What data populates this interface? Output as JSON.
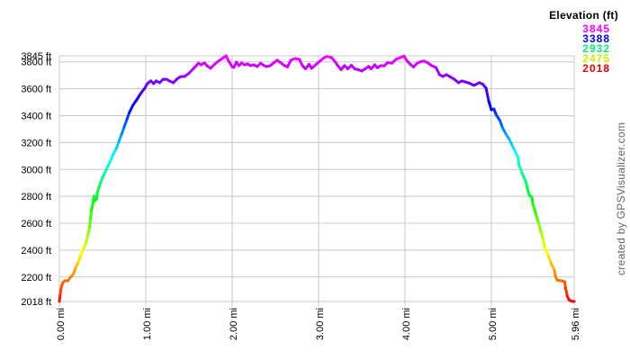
{
  "page": {
    "watermark": "created by GPSVisualizer.com"
  },
  "legend": {
    "title": "Elevation (ft)",
    "entries": [
      {
        "label": "3845",
        "color": "#ff00ff"
      },
      {
        "label": "3388",
        "color": "#0000ff"
      },
      {
        "label": "2932",
        "color": "#00f078"
      },
      {
        "label": "2475",
        "color": "#c8f000"
      },
      {
        "label": "2018",
        "color": "#f00000"
      }
    ]
  },
  "chart_data": {
    "type": "line",
    "title": "",
    "x_unit": "mi",
    "y_unit": "ft",
    "xlim": [
      0,
      5.96
    ],
    "ylim": [
      2018,
      3845
    ],
    "grid": true,
    "grid_color": "#c8c8c8",
    "legend_position": "top-right",
    "line_width": 3,
    "color_ramp": {
      "type": "rainbow-by-elevation",
      "min": 2018,
      "max": 3845,
      "hue_start_deg": 0,
      "hue_end_deg": 300
    },
    "x_ticks": [
      {
        "value": 0.0,
        "label": "0.00 mi"
      },
      {
        "value": 1.0,
        "label": "1.00 mi"
      },
      {
        "value": 2.0,
        "label": "2.00 mi"
      },
      {
        "value": 3.0,
        "label": "3.00 mi"
      },
      {
        "value": 4.0,
        "label": "4.00 mi"
      },
      {
        "value": 5.0,
        "label": "5.00 mi"
      },
      {
        "value": 5.96,
        "label": "5.96 mi"
      }
    ],
    "y_ticks": [
      {
        "value": 3845,
        "label": "3845 ft"
      },
      {
        "value": 3800,
        "label": "3800 ft"
      },
      {
        "value": 3600,
        "label": "3600 ft"
      },
      {
        "value": 3400,
        "label": "3400 ft"
      },
      {
        "value": 3200,
        "label": "3200 ft"
      },
      {
        "value": 3000,
        "label": "3000 ft"
      },
      {
        "value": 2800,
        "label": "2800 ft"
      },
      {
        "value": 2600,
        "label": "2600 ft"
      },
      {
        "value": 2400,
        "label": "2400 ft"
      },
      {
        "value": 2200,
        "label": "2200 ft"
      },
      {
        "value": 2018,
        "label": "2018 ft"
      }
    ],
    "series": [
      {
        "name": "Elevation (ft)",
        "points_mi_ft": [
          [
            0.0,
            2018
          ],
          [
            0.01,
            2075
          ],
          [
            0.02,
            2118
          ],
          [
            0.04,
            2158
          ],
          [
            0.06,
            2172
          ],
          [
            0.1,
            2172
          ],
          [
            0.12,
            2192
          ],
          [
            0.16,
            2220
          ],
          [
            0.19,
            2272
          ],
          [
            0.22,
            2312
          ],
          [
            0.25,
            2366
          ],
          [
            0.28,
            2413
          ],
          [
            0.31,
            2460
          ],
          [
            0.33,
            2513
          ],
          [
            0.35,
            2573
          ],
          [
            0.36,
            2634
          ],
          [
            0.37,
            2694
          ],
          [
            0.39,
            2754
          ],
          [
            0.4,
            2801
          ],
          [
            0.41,
            2767
          ],
          [
            0.43,
            2781
          ],
          [
            0.44,
            2828
          ],
          [
            0.46,
            2868
          ],
          [
            0.48,
            2908
          ],
          [
            0.5,
            2941
          ],
          [
            0.53,
            2981
          ],
          [
            0.56,
            3022
          ],
          [
            0.59,
            3062
          ],
          [
            0.62,
            3109
          ],
          [
            0.66,
            3156
          ],
          [
            0.69,
            3209
          ],
          [
            0.72,
            3263
          ],
          [
            0.75,
            3316
          ],
          [
            0.78,
            3370
          ],
          [
            0.81,
            3423
          ],
          [
            0.85,
            3476
          ],
          [
            0.9,
            3523
          ],
          [
            0.94,
            3563
          ],
          [
            0.97,
            3590
          ],
          [
            0.99,
            3604
          ],
          [
            1.01,
            3630
          ],
          [
            1.03,
            3645
          ],
          [
            1.06,
            3658
          ],
          [
            1.09,
            3638
          ],
          [
            1.12,
            3658
          ],
          [
            1.16,
            3645
          ],
          [
            1.2,
            3670
          ],
          [
            1.24,
            3670
          ],
          [
            1.28,
            3656
          ],
          [
            1.32,
            3645
          ],
          [
            1.36,
            3672
          ],
          [
            1.4,
            3690
          ],
          [
            1.45,
            3692
          ],
          [
            1.5,
            3715
          ],
          [
            1.54,
            3742
          ],
          [
            1.58,
            3768
          ],
          [
            1.61,
            3790
          ],
          [
            1.64,
            3778
          ],
          [
            1.68,
            3792
          ],
          [
            1.71,
            3770
          ],
          [
            1.75,
            3752
          ],
          [
            1.79,
            3778
          ],
          [
            1.83,
            3800
          ],
          [
            1.88,
            3822
          ],
          [
            1.93,
            3845
          ],
          [
            1.96,
            3805
          ],
          [
            2.0,
            3765
          ],
          [
            2.02,
            3758
          ],
          [
            2.05,
            3798
          ],
          [
            2.08,
            3772
          ],
          [
            2.11,
            3792
          ],
          [
            2.14,
            3778
          ],
          [
            2.18,
            3785
          ],
          [
            2.21,
            3772
          ],
          [
            2.25,
            3778
          ],
          [
            2.29,
            3765
          ],
          [
            2.33,
            3790
          ],
          [
            2.37,
            3772
          ],
          [
            2.4,
            3765
          ],
          [
            2.44,
            3772
          ],
          [
            2.48,
            3792
          ],
          [
            2.52,
            3812
          ],
          [
            2.56,
            3795
          ],
          [
            2.6,
            3775
          ],
          [
            2.64,
            3762
          ],
          [
            2.68,
            3812
          ],
          [
            2.73,
            3825
          ],
          [
            2.78,
            3818
          ],
          [
            2.81,
            3775
          ],
          [
            2.85,
            3748
          ],
          [
            2.89,
            3782
          ],
          [
            2.92,
            3752
          ],
          [
            2.96,
            3775
          ],
          [
            3.01,
            3802
          ],
          [
            3.06,
            3828
          ],
          [
            3.1,
            3840
          ],
          [
            3.15,
            3832
          ],
          [
            3.19,
            3802
          ],
          [
            3.22,
            3775
          ],
          [
            3.26,
            3742
          ],
          [
            3.3,
            3772
          ],
          [
            3.34,
            3748
          ],
          [
            3.38,
            3775
          ],
          [
            3.42,
            3748
          ],
          [
            3.46,
            3742
          ],
          [
            3.5,
            3732
          ],
          [
            3.54,
            3748
          ],
          [
            3.58,
            3766
          ],
          [
            3.61,
            3748
          ],
          [
            3.65,
            3778
          ],
          [
            3.68,
            3756
          ],
          [
            3.72,
            3772
          ],
          [
            3.76,
            3770
          ],
          [
            3.8,
            3795
          ],
          [
            3.85,
            3790
          ],
          [
            3.9,
            3820
          ],
          [
            3.95,
            3832
          ],
          [
            3.99,
            3843
          ],
          [
            4.03,
            3802
          ],
          [
            4.07,
            3778
          ],
          [
            4.1,
            3762
          ],
          [
            4.14,
            3788
          ],
          [
            4.18,
            3800
          ],
          [
            4.22,
            3806
          ],
          [
            4.26,
            3795
          ],
          [
            4.31,
            3772
          ],
          [
            4.36,
            3758
          ],
          [
            4.4,
            3705
          ],
          [
            4.44,
            3692
          ],
          [
            4.48,
            3705
          ],
          [
            4.52,
            3690
          ],
          [
            4.57,
            3672
          ],
          [
            4.62,
            3645
          ],
          [
            4.66,
            3658
          ],
          [
            4.7,
            3650
          ],
          [
            4.75,
            3640
          ],
          [
            4.8,
            3625
          ],
          [
            4.86,
            3645
          ],
          [
            4.9,
            3635
          ],
          [
            4.94,
            3604
          ],
          [
            4.97,
            3510
          ],
          [
            5.0,
            3443
          ],
          [
            5.03,
            3450
          ],
          [
            5.06,
            3403
          ],
          [
            5.1,
            3363
          ],
          [
            5.13,
            3310
          ],
          [
            5.17,
            3263
          ],
          [
            5.21,
            3222
          ],
          [
            5.24,
            3182
          ],
          [
            5.27,
            3142
          ],
          [
            5.31,
            3089
          ],
          [
            5.32,
            3035
          ],
          [
            5.36,
            2968
          ],
          [
            5.4,
            2908
          ],
          [
            5.42,
            2854
          ],
          [
            5.44,
            2808
          ],
          [
            5.47,
            2794
          ],
          [
            5.48,
            2747
          ],
          [
            5.52,
            2660
          ],
          [
            5.55,
            2593
          ],
          [
            5.58,
            2526
          ],
          [
            5.6,
            2480
          ],
          [
            5.62,
            2413
          ],
          [
            5.66,
            2359
          ],
          [
            5.69,
            2306
          ],
          [
            5.73,
            2252
          ],
          [
            5.74,
            2212
          ],
          [
            5.76,
            2178
          ],
          [
            5.81,
            2172
          ],
          [
            5.85,
            2165
          ],
          [
            5.86,
            2118
          ],
          [
            5.88,
            2058
          ],
          [
            5.9,
            2031
          ],
          [
            5.93,
            2020
          ],
          [
            5.96,
            2018
          ]
        ]
      }
    ]
  }
}
